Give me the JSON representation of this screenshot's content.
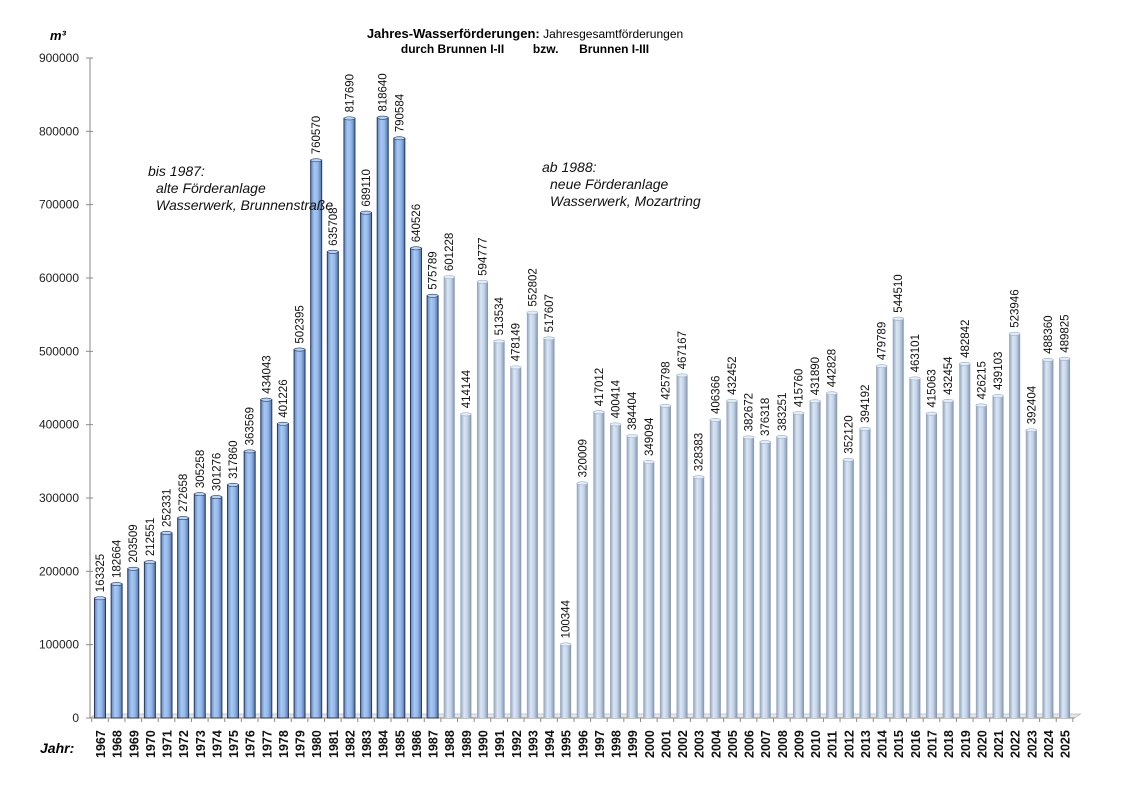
{
  "chart_data": {
    "type": "bar",
    "title": "Jahres-Wasserförderungen:",
    "title_suffix": "Jahresgesamtförderungen",
    "subtitle_parts": [
      "durch Brunnen I-II",
      "bzw.",
      "Brunnen I-III"
    ],
    "ylabel": "m³",
    "xlabel": "Jahr:",
    "ylim": [
      0,
      900000
    ],
    "yticks": [
      "0",
      "100000",
      "200000",
      "300000",
      "400000",
      "500000",
      "600000",
      "700000",
      "800000",
      "900000"
    ],
    "ytick_values": [
      0,
      100000,
      200000,
      300000,
      400000,
      500000,
      600000,
      700000,
      800000,
      900000
    ],
    "grid": false,
    "legend": "none",
    "categories": [
      "1967",
      "1968",
      "1969",
      "1970",
      "1971",
      "1972",
      "1973",
      "1974",
      "1975",
      "1976",
      "1977",
      "1978",
      "1979",
      "1980",
      "1981",
      "1982",
      "1983",
      "1984",
      "1985",
      "1986",
      "1987",
      "1988",
      "1989",
      "1990",
      "1991",
      "1992",
      "1993",
      "1994",
      "1995",
      "1996",
      "1997",
      "1998",
      "1999",
      "2000",
      "2001",
      "2002",
      "2003",
      "2004",
      "2005",
      "2006",
      "2007",
      "2008",
      "2009",
      "2010",
      "2011",
      "2012",
      "2013",
      "2014",
      "2015",
      "2016",
      "2017",
      "2018",
      "2019",
      "2020",
      "2021",
      "2022",
      "2023",
      "2024",
      "2025"
    ],
    "values": [
      163325,
      182664,
      203509,
      212551,
      252331,
      272658,
      305258,
      301276,
      317860,
      363569,
      434043,
      401226,
      502395,
      760570,
      635708,
      817690,
      689110,
      818640,
      790584,
      640526,
      575789,
      601228,
      414144,
      594777,
      513534,
      478149,
      552802,
      517607,
      100344,
      320009,
      417012,
      400414,
      384404,
      349094,
      425798,
      467167,
      328383,
      406366,
      432452,
      382672,
      376318,
      383251,
      415760,
      431890,
      442828,
      352120,
      394192,
      479789,
      544510,
      463101,
      415063,
      432454,
      482842,
      426215,
      439103,
      523946,
      392404,
      488360,
      489825
    ],
    "data_labels": [
      "163325",
      "182664",
      "203509",
      "212551",
      "252331",
      "272658",
      "305258",
      "301276",
      "317860",
      "363569",
      "434043",
      "401226",
      "502395",
      "760570",
      "635708",
      "817690",
      "689110",
      "818640",
      "790584",
      "640526",
      "575789",
      "601228",
      "414144",
      "594777",
      "513534",
      "478149",
      "552802",
      "517607",
      "100344",
      "320009",
      "417012",
      "400414",
      "384404",
      "349094",
      "425798",
      "467167",
      "328383",
      "406366",
      "432452",
      "382672",
      "376318",
      "383251",
      "415760",
      "431890",
      "442828",
      "352120",
      "394192",
      "479789",
      "544510",
      "463101",
      "415063",
      "432454",
      "482842",
      "426215",
      "439103",
      "523946",
      "392404",
      "488360",
      "489825"
    ],
    "series_groups": [
      {
        "name": "alte Förderanlage (bis 1987)",
        "from": "1967",
        "to": "1987",
        "color": "#8cb4e6",
        "edge": "#2b3a55"
      },
      {
        "name": "neue Förderanlage (ab 1988)",
        "from": "1988",
        "to": "2025",
        "color": "#c3d3e8",
        "edge": "#8a9bb3"
      }
    ],
    "annotations": [
      {
        "id": "old",
        "lines": [
          "bis 1987:",
          "alte Förderanlage",
          "Wasserwerk, Brunnenstraße"
        ]
      },
      {
        "id": "new",
        "lines": [
          "ab 1988:",
          "neue Förderanlage",
          "Wasserwerk, Mozartring"
        ]
      }
    ]
  }
}
